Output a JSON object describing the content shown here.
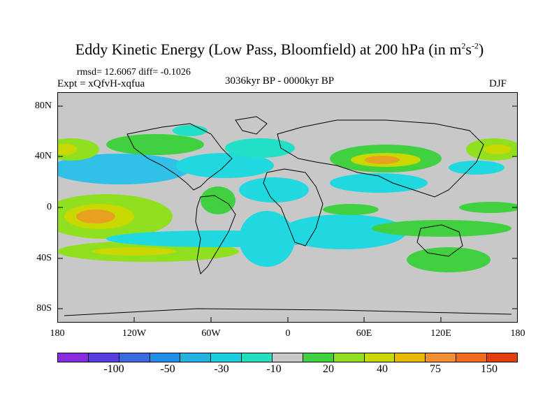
{
  "title": "Eddy Kinetic Energy (Low Pass, Bloomfield) at 200 hPa (in m",
  "title_unit_1": "2",
  "title_unit_mid": "s",
  "title_unit_2": "-2",
  "title_end": ")",
  "stats": "rmsd= 12.6067 diff= -0.1026",
  "experiment": "Expt = xQfvH-xqfua",
  "period": "3036kyr BP - 0000kyr BP",
  "season": "DJF",
  "lat_labels": [
    "80N",
    "40N",
    "0",
    "40S",
    "80S"
  ],
  "lon_labels": [
    "180",
    "120W",
    "60W",
    "0",
    "60E",
    "120E",
    "180"
  ],
  "colorbar": {
    "colors": [
      "#8a2be2",
      "#5a3ee0",
      "#3a6ae0",
      "#1e90e8",
      "#20b2e0",
      "#18d0e0",
      "#20e0c0",
      "#c8c8c8",
      "#40d040",
      "#90e020",
      "#c8d800",
      "#e8b800",
      "#f09030",
      "#f06a20",
      "#e04010"
    ],
    "labels": [
      "-100",
      "-50",
      "-30",
      "-10",
      "20",
      "40",
      "75",
      "150"
    ]
  },
  "map": {
    "background": "#c8c8c8",
    "field_colors": {
      "cyan": "#20d8e0",
      "teal": "#20e0c8",
      "lightblue": "#30c0e8",
      "green": "#40d040",
      "lime": "#90e020",
      "yellow": "#c8d800",
      "orange": "#e8a020",
      "red": "#e07020"
    }
  }
}
